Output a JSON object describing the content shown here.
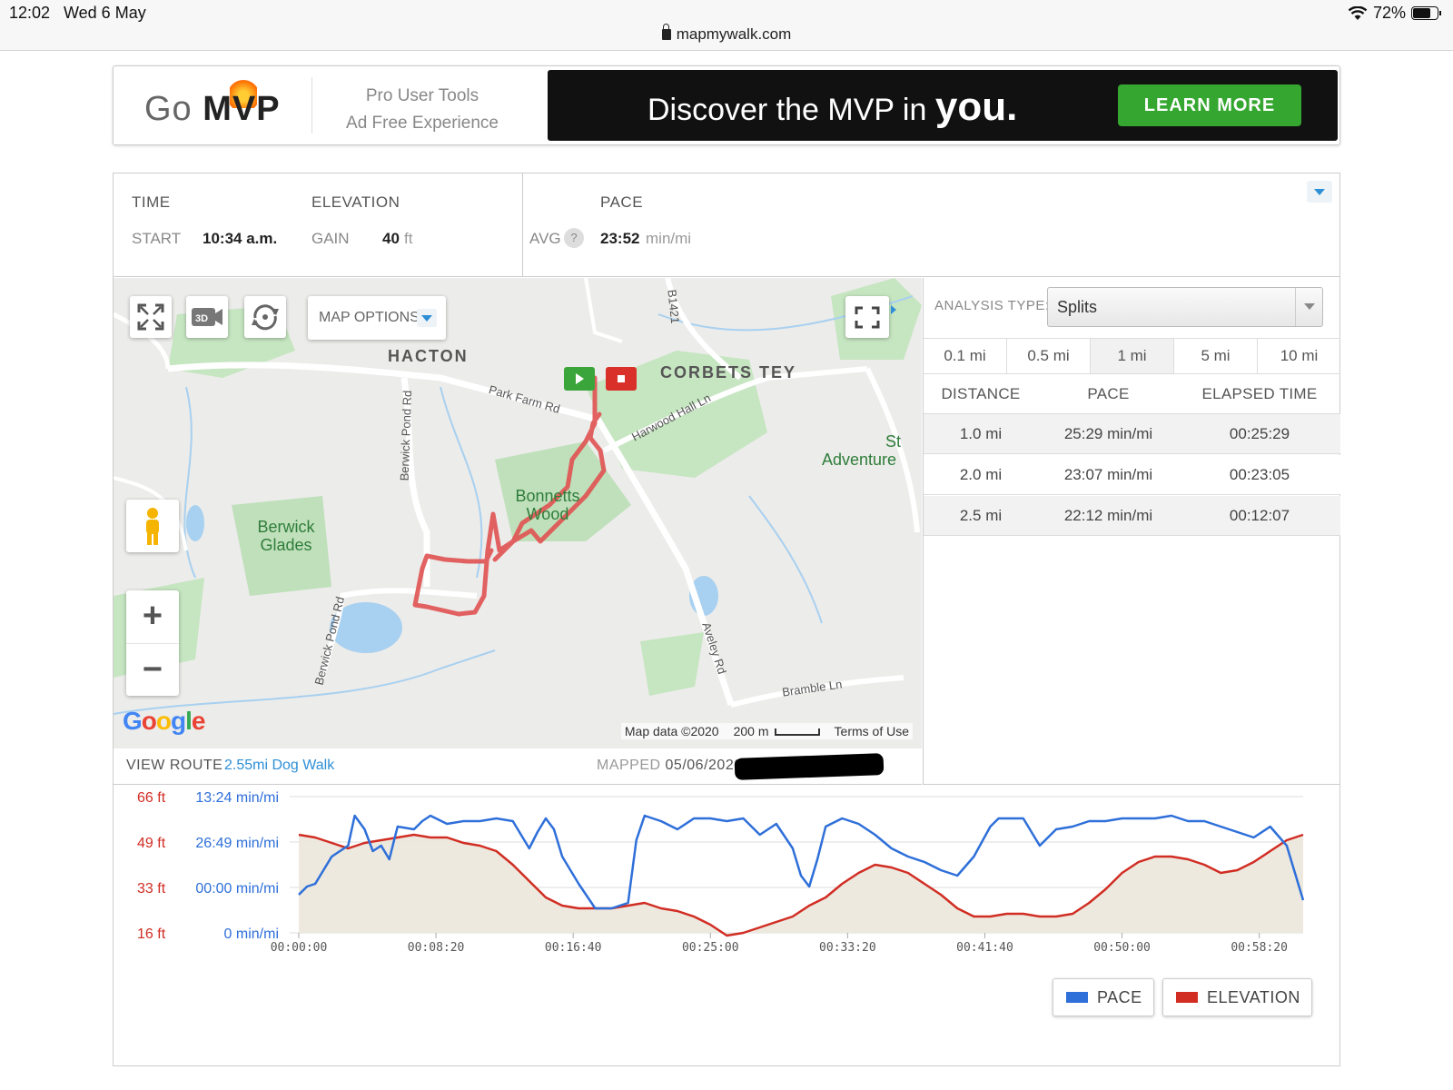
{
  "status_bar": {
    "time": "12:02",
    "date": "Wed 6 May",
    "battery": "72%",
    "battery_level": 0.72
  },
  "browser": {
    "url": "mapmywalk.com"
  },
  "ad": {
    "logo_go": "Go",
    "logo_mvp": "MVP",
    "tools_line1": "Pro User Tools",
    "tools_line2": "Ad Free Experience",
    "discover": "Discover the MVP in",
    "you": "you.",
    "cta": "LEARN MORE"
  },
  "stats": {
    "time_heading": "TIME",
    "start_label": "START",
    "start_value": "10:34 a.m.",
    "elevation_heading": "ELEVATION",
    "gain_label": "GAIN",
    "gain_value": "40",
    "gain_unit": "ft",
    "pace_heading": "PACE",
    "avg_label": "AVG",
    "help_glyph": "?",
    "avg_value": "23:52",
    "avg_unit": "min/mi"
  },
  "map": {
    "options_label": "MAP OPTIONS",
    "btn_3d": "3D",
    "labels": {
      "hacton": "HACTON",
      "corbets_tey": "CORBETS TEY",
      "berwick_glades": "Berwick Glades",
      "bonnetts_wood": "Bonnetts Wood",
      "st_adventure_1": "St",
      "st_adventure_2": "Adventure",
      "park_farm_rd": "Park Farm Rd",
      "harwood_hall_ln": "Harwood Hall Ln",
      "berwick_pond_rd_1": "Berwick Pond Rd",
      "berwick_pond_rd_2": "Berwick Pond Rd",
      "aveley_rd": "Aveley Rd",
      "bramble_ln": "Bramble Ln",
      "b1421": "B1421"
    },
    "google": "Google",
    "map_data": "Map data ©2020",
    "scale": "200 m",
    "terms": "Terms of Use",
    "zoom_in": "+",
    "zoom_out": "−"
  },
  "route": {
    "view_label": "VIEW ROUTE",
    "name": "2.55mi Dog Walk",
    "mapped_label": "MAPPED",
    "mapped_date": "05/06/2020"
  },
  "analysis": {
    "type_label": "ANALYSIS TYPE:",
    "type_value": "Splits",
    "tabs": [
      "0.1 mi",
      "0.5 mi",
      "1 mi",
      "5 mi",
      "10 mi"
    ],
    "active_tab": 2,
    "columns": [
      "DISTANCE",
      "PACE",
      "ELAPSED TIME"
    ],
    "rows": [
      {
        "distance": "1.0 mi",
        "pace": "25:29 min/mi",
        "elapsed": "00:25:29"
      },
      {
        "distance": "2.0 mi",
        "pace": "23:07 min/mi",
        "elapsed": "00:23:05"
      },
      {
        "distance": "2.5 mi",
        "pace": "22:12 min/mi",
        "elapsed": "00:12:07"
      }
    ]
  },
  "chart_data": {
    "type": "line",
    "elevation_ticks": [
      "66 ft",
      "49 ft",
      "33 ft",
      "16 ft"
    ],
    "pace_ticks": [
      "13:24 min/mi",
      "26:49 min/mi",
      "00:00 min/mi",
      "0 min/mi"
    ],
    "x_ticks": [
      "00:00:00",
      "00:08:20",
      "00:16:40",
      "00:25:00",
      "00:33:20",
      "00:41:40",
      "00:50:00",
      "00:58:20"
    ],
    "x_range_min": [
      0,
      61
    ],
    "elevation_range_ft": [
      16,
      66
    ],
    "grid": true,
    "legend_placement": "bottom-right",
    "series": [
      {
        "name": "PACE",
        "color": "#2e6fd9",
        "x_min": [
          0,
          0.5,
          1,
          2,
          3,
          3.4,
          4,
          4.5,
          5,
          5.5,
          6,
          7,
          7.5,
          8,
          9,
          10,
          11,
          12,
          13,
          14,
          14.5,
          15,
          15.5,
          16,
          17,
          18,
          19,
          20,
          20.5,
          21,
          22,
          23,
          24,
          25,
          26,
          27,
          28,
          29,
          30,
          30.5,
          31,
          31.5,
          32,
          33,
          34,
          35,
          36,
          37,
          38,
          39,
          40,
          41,
          42,
          42.5,
          43,
          44,
          45,
          46,
          47,
          48,
          49,
          50,
          51,
          52,
          53,
          54,
          55,
          56,
          57,
          58,
          59,
          60,
          61
        ],
        "values_ft": [
          30,
          33,
          34,
          44,
          48,
          59,
          54,
          46,
          48,
          43,
          55,
          54,
          57,
          59,
          56,
          57,
          57,
          58,
          57,
          47,
          53,
          58,
          54,
          44,
          34,
          25,
          25,
          27,
          50,
          59,
          57,
          54,
          58,
          58,
          57,
          58,
          52,
          56,
          47,
          37,
          33,
          43,
          55,
          58,
          56,
          52,
          47,
          44,
          42,
          39,
          37,
          44,
          55,
          58,
          58,
          58,
          48,
          54,
          55,
          57,
          57,
          58,
          58,
          58,
          59,
          57,
          57,
          55,
          53,
          51,
          55,
          48,
          28
        ]
      },
      {
        "name": "ELEVATION",
        "color": "#d12d23",
        "x_min": [
          0,
          1,
          2,
          3,
          4,
          5,
          6,
          7,
          8,
          9,
          10,
          11,
          12,
          13,
          14,
          15,
          16,
          17,
          18,
          19,
          20,
          21,
          22,
          23,
          24,
          25,
          26,
          27,
          28,
          29,
          30,
          31,
          32,
          33,
          34,
          35,
          36,
          37,
          38,
          39,
          40,
          41,
          42,
          43,
          44,
          45,
          46,
          47,
          48,
          49,
          50,
          51,
          52,
          53,
          54,
          55,
          56,
          57,
          58,
          59,
          60,
          61
        ],
        "values_ft": [
          52,
          51,
          49,
          47,
          49,
          50,
          51,
          52,
          51,
          51,
          49,
          48,
          46,
          41,
          35,
          29,
          26,
          25,
          25,
          25,
          26,
          27,
          25,
          24,
          22,
          19,
          15,
          16,
          18,
          20,
          22,
          26,
          29,
          34,
          38,
          41,
          40,
          38,
          34,
          30,
          25,
          22,
          22,
          23,
          23,
          22,
          22,
          23,
          27,
          32,
          38,
          42,
          44,
          44,
          43,
          41,
          38,
          39,
          42,
          46,
          50,
          52
        ]
      }
    ]
  }
}
